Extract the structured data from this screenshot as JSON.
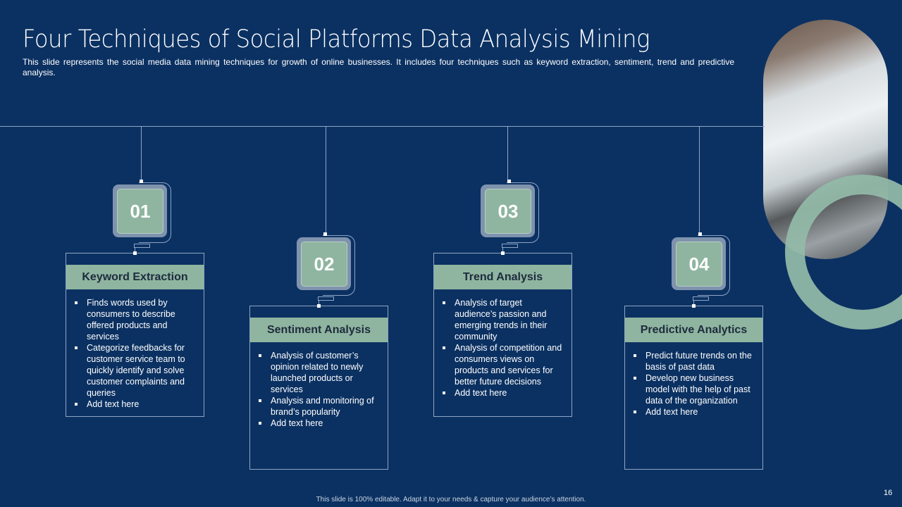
{
  "title": "Four Techniques of Social Platforms Data Analysis Mining",
  "subtitle": "This slide represents the social media data mining techniques for growth of online businesses. It includes four techniques such as keyword extraction, sentiment, trend and predictive analysis.",
  "cards": [
    {
      "number": "01",
      "heading": "Keyword Extraction",
      "bullets": [
        "Finds words used by consumers to describe offered products and services",
        "Categorize feedbacks for customer service team to quickly identify and solve customer complaints and queries",
        "Add text here"
      ]
    },
    {
      "number": "02",
      "heading": "Sentiment Analysis",
      "bullets": [
        "Analysis of customer’s opinion related to newly launched products or services",
        "Analysis and monitoring of brand’s popularity",
        "Add text here"
      ]
    },
    {
      "number": "03",
      "heading": "Trend Analysis",
      "bullets": [
        "Analysis of target audience’s passion and emerging trends in their community",
        "Analysis of competition and consumers views on products and services for better future decisions",
        "Add text here"
      ]
    },
    {
      "number": "04",
      "heading": "Predictive Analytics",
      "bullets": [
        "Predict future trends on the basis of past data",
        "Develop new business model with the help of past data of the organization",
        "Add text here"
      ]
    }
  ],
  "footer": "This slide is 100% editable. Adapt it to your needs & capture your audience’s attention.",
  "page_number": "16",
  "colors": {
    "background": "#0B3162",
    "accent": "#8FB5A0",
    "tile": "#7F93AE"
  }
}
